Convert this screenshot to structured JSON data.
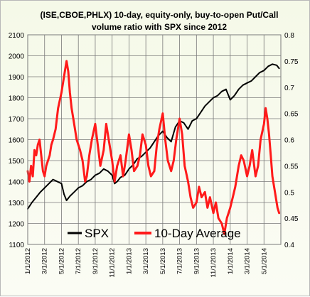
{
  "chart_data": {
    "type": "line",
    "title_line1": "(ISE,CBOE,PHLX) 10-day, equity-only, buy-to-open Put/Call",
    "title_line2": "volume ratio with SPX since 2012",
    "x_tick_labels": [
      "1/1/2012",
      "3/1/2012",
      "5/1/2012",
      "7/1/2012",
      "9/1/2012",
      "11/1/2012",
      "1/1/2013",
      "3/1/2013",
      "5/1/2013",
      "7/1/2013",
      "9/1/2013",
      "11/1/2013",
      "1/1/2014",
      "3/1/2014",
      "5/1/2014"
    ],
    "y_left": {
      "ticks": [
        "1100",
        "1200",
        "1300",
        "1400",
        "1500",
        "1600",
        "1700",
        "1800",
        "1900",
        "2000",
        "2100"
      ],
      "range": [
        1100,
        2100
      ]
    },
    "y_right": {
      "ticks": [
        "0.4",
        "0.45",
        "0.5",
        "0.55",
        "0.6",
        "0.65",
        "0.7",
        "0.75",
        "0.8"
      ],
      "range": [
        0.4,
        0.8
      ]
    },
    "x_range_months": [
      0,
      30
    ],
    "legend": {
      "spx": "SPX",
      "avg": "10-Day Average",
      "placement": "bottom-left"
    },
    "colors": {
      "spx": "#000000",
      "avg": "#ff1a1a",
      "grid": "#7a7a7a",
      "background": "#f5f9e8"
    },
    "grid": true,
    "series": [
      {
        "name": "SPX",
        "axis": "left",
        "x": [
          0,
          0.5,
          1,
          1.5,
          2,
          2.5,
          3,
          3.5,
          4,
          4.3,
          4.6,
          5,
          5.5,
          6,
          6.5,
          7,
          7.5,
          8,
          8.5,
          9,
          9.5,
          10,
          10.3,
          10.6,
          11,
          11.5,
          12,
          12.5,
          13,
          13.5,
          14,
          14.5,
          15,
          15.5,
          16,
          16.5,
          17,
          17.5,
          18,
          18.5,
          19,
          19.5,
          20,
          20.5,
          21,
          21.5,
          22,
          22.5,
          23,
          23.5,
          24,
          24.5,
          25,
          25.5,
          26,
          26.5,
          27,
          27.5,
          28,
          28.5,
          29,
          29.5,
          29.8
        ],
        "values": [
          1270,
          1300,
          1325,
          1350,
          1370,
          1390,
          1410,
          1400,
          1390,
          1340,
          1310,
          1330,
          1350,
          1370,
          1380,
          1400,
          1410,
          1430,
          1440,
          1460,
          1450,
          1430,
          1390,
          1400,
          1420,
          1430,
          1460,
          1480,
          1510,
          1520,
          1540,
          1560,
          1590,
          1620,
          1640,
          1610,
          1590,
          1660,
          1690,
          1680,
          1650,
          1690,
          1700,
          1730,
          1760,
          1780,
          1800,
          1810,
          1830,
          1840,
          1790,
          1810,
          1840,
          1860,
          1870,
          1880,
          1900,
          1920,
          1930,
          1950,
          1960,
          1955,
          1940
        ]
      },
      {
        "name": "10-Day Average",
        "axis": "right",
        "x": [
          0,
          0.2,
          0.4,
          0.6,
          0.8,
          1,
          1.2,
          1.4,
          1.6,
          1.8,
          2,
          2.2,
          2.4,
          2.6,
          2.8,
          3,
          3.3,
          3.6,
          4,
          4.3,
          4.6,
          4.8,
          5,
          5.2,
          5.5,
          5.8,
          6,
          6.2,
          6.5,
          6.8,
          7,
          7.3,
          7.6,
          8,
          8.3,
          8.6,
          9,
          9.3,
          9.6,
          10,
          10.3,
          10.6,
          11,
          11.3,
          11.6,
          12,
          12.3,
          12.6,
          13,
          13.3,
          13.6,
          14,
          14.3,
          14.6,
          15,
          15.3,
          15.6,
          16,
          16.3,
          16.6,
          17,
          17.3,
          17.6,
          18,
          18.3,
          18.6,
          19,
          19.3,
          19.6,
          20,
          20.3,
          20.6,
          21,
          21.3,
          21.6,
          22,
          22.3,
          22.6,
          23,
          23.3,
          23.6,
          24,
          24.3,
          24.6,
          25,
          25.3,
          25.6,
          26,
          26.3,
          26.6,
          27,
          27.3,
          27.6,
          28,
          28.2,
          28.4,
          28.6,
          28.8,
          29,
          29.2,
          29.4,
          29.6,
          29.8
        ],
        "values": [
          0.54,
          0.52,
          0.55,
          0.53,
          0.58,
          0.57,
          0.59,
          0.6,
          0.57,
          0.54,
          0.53,
          0.55,
          0.56,
          0.57,
          0.59,
          0.6,
          0.62,
          0.66,
          0.69,
          0.72,
          0.75,
          0.73,
          0.69,
          0.66,
          0.63,
          0.6,
          0.59,
          0.58,
          0.56,
          0.52,
          0.53,
          0.57,
          0.6,
          0.63,
          0.59,
          0.55,
          0.58,
          0.63,
          0.6,
          0.56,
          0.52,
          0.55,
          0.57,
          0.53,
          0.56,
          0.61,
          0.58,
          0.54,
          0.55,
          0.57,
          0.61,
          0.59,
          0.55,
          0.53,
          0.54,
          0.59,
          0.62,
          0.65,
          0.6,
          0.56,
          0.54,
          0.56,
          0.6,
          0.64,
          0.61,
          0.55,
          0.52,
          0.49,
          0.47,
          0.48,
          0.51,
          0.49,
          0.5,
          0.47,
          0.49,
          0.46,
          0.48,
          0.45,
          0.44,
          0.42,
          0.45,
          0.47,
          0.49,
          0.51,
          0.55,
          0.57,
          0.56,
          0.53,
          0.55,
          0.58,
          0.53,
          0.55,
          0.6,
          0.63,
          0.66,
          0.64,
          0.61,
          0.57,
          0.53,
          0.51,
          0.49,
          0.47,
          0.46
        ]
      }
    ]
  }
}
